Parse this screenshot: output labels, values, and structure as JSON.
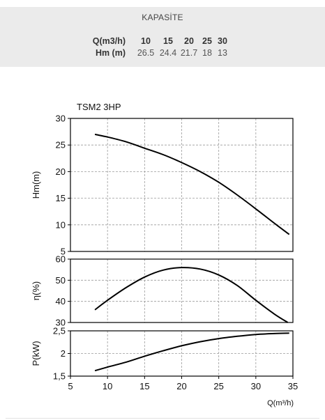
{
  "capacity": {
    "title": "KAPASİTE",
    "q_label": "Q(m3/h)",
    "h_label": "Hm (m)",
    "q_values": [
      "10",
      "15",
      "20",
      "25",
      "30"
    ],
    "h_values": [
      "26.5",
      "24.4",
      "21.7",
      "18",
      "13"
    ]
  },
  "chart_data": [
    {
      "type": "line",
      "title": "TSM2 3HP",
      "ylabel": "Hm(m)",
      "xlim": [
        5,
        35
      ],
      "ylim": [
        5,
        30
      ],
      "yticks": [
        "5",
        "10",
        "15",
        "20",
        "25",
        "30"
      ],
      "grid": true,
      "x": [
        8.3,
        10,
        12.5,
        15,
        17.5,
        20,
        22.5,
        25,
        27.5,
        30,
        32.5,
        34.5
      ],
      "values": [
        27,
        26.5,
        25.6,
        24.4,
        23.2,
        21.7,
        20,
        18,
        15.6,
        13,
        10.3,
        8.2
      ]
    },
    {
      "type": "line",
      "ylabel": "η(%)",
      "xlim": [
        5,
        35
      ],
      "ylim": [
        30,
        60
      ],
      "yticks": [
        "30",
        "40",
        "50",
        "60"
      ],
      "grid": true,
      "x": [
        8.3,
        10,
        12.5,
        15,
        17.5,
        20,
        22.5,
        25,
        27.5,
        30,
        32.5,
        34.3
      ],
      "values": [
        36,
        40.5,
        46.5,
        51.5,
        54.8,
        56,
        55.3,
        52.5,
        47.5,
        40.5,
        34,
        30
      ]
    },
    {
      "type": "line",
      "ylabel": "P(kW)",
      "xlabel": "Q(m³/h)",
      "xlim": [
        5,
        35
      ],
      "ylim": [
        1.5,
        2.5
      ],
      "yticks": [
        "1,5",
        "2",
        "2,5"
      ],
      "xticks": [
        "5",
        "10",
        "15",
        "20",
        "25",
        "30",
        "35"
      ],
      "grid": true,
      "x": [
        8.3,
        10,
        12.5,
        15,
        17.5,
        20,
        22.5,
        25,
        27.5,
        30,
        32.5,
        34.5
      ],
      "values": [
        1.62,
        1.7,
        1.81,
        1.94,
        2.06,
        2.17,
        2.26,
        2.33,
        2.38,
        2.42,
        2.44,
        2.45
      ]
    }
  ]
}
